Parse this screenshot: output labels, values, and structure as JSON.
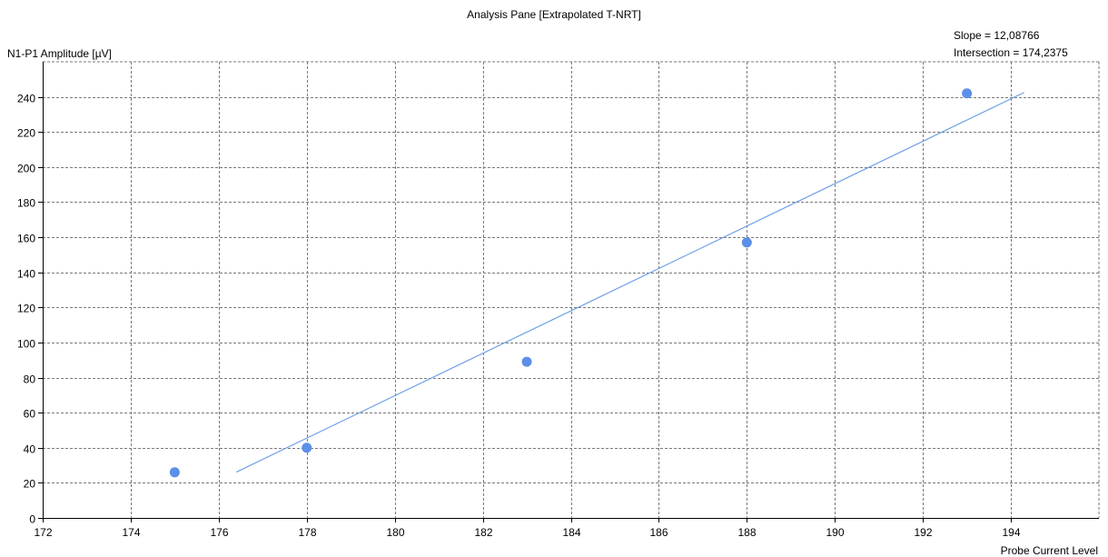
{
  "chart_data": {
    "type": "scatter",
    "title": "Analysis Pane [Extrapolated T-NRT]",
    "ylabel": "N1-P1 Amplitude [µV]",
    "xlabel": "Probe Current Level",
    "xlim": [
      172,
      196
    ],
    "ylim": [
      0,
      260
    ],
    "x_ticks": [
      172,
      174,
      176,
      178,
      180,
      182,
      184,
      186,
      188,
      190,
      192,
      194
    ],
    "y_ticks": [
      0,
      20,
      40,
      60,
      80,
      100,
      120,
      140,
      160,
      180,
      200,
      220,
      240
    ],
    "grid": true,
    "points": [
      {
        "x": 175,
        "y": 26
      },
      {
        "x": 178,
        "y": 40
      },
      {
        "x": 183,
        "y": 89
      },
      {
        "x": 188,
        "y": 157
      },
      {
        "x": 193,
        "y": 242
      }
    ],
    "fit_line": {
      "slope": 12.08766,
      "intersection": 174.2375,
      "x_start": 176.4,
      "x_end": 194.3
    },
    "annotations": {
      "slope_label": "Slope = 12,08766",
      "intersection_label": "Intersection = 174,2375"
    },
    "colors": {
      "points": "#5b8fe8",
      "line": "#6fa0e8",
      "grid": "#7a7a7a",
      "axis": "#000000"
    }
  }
}
